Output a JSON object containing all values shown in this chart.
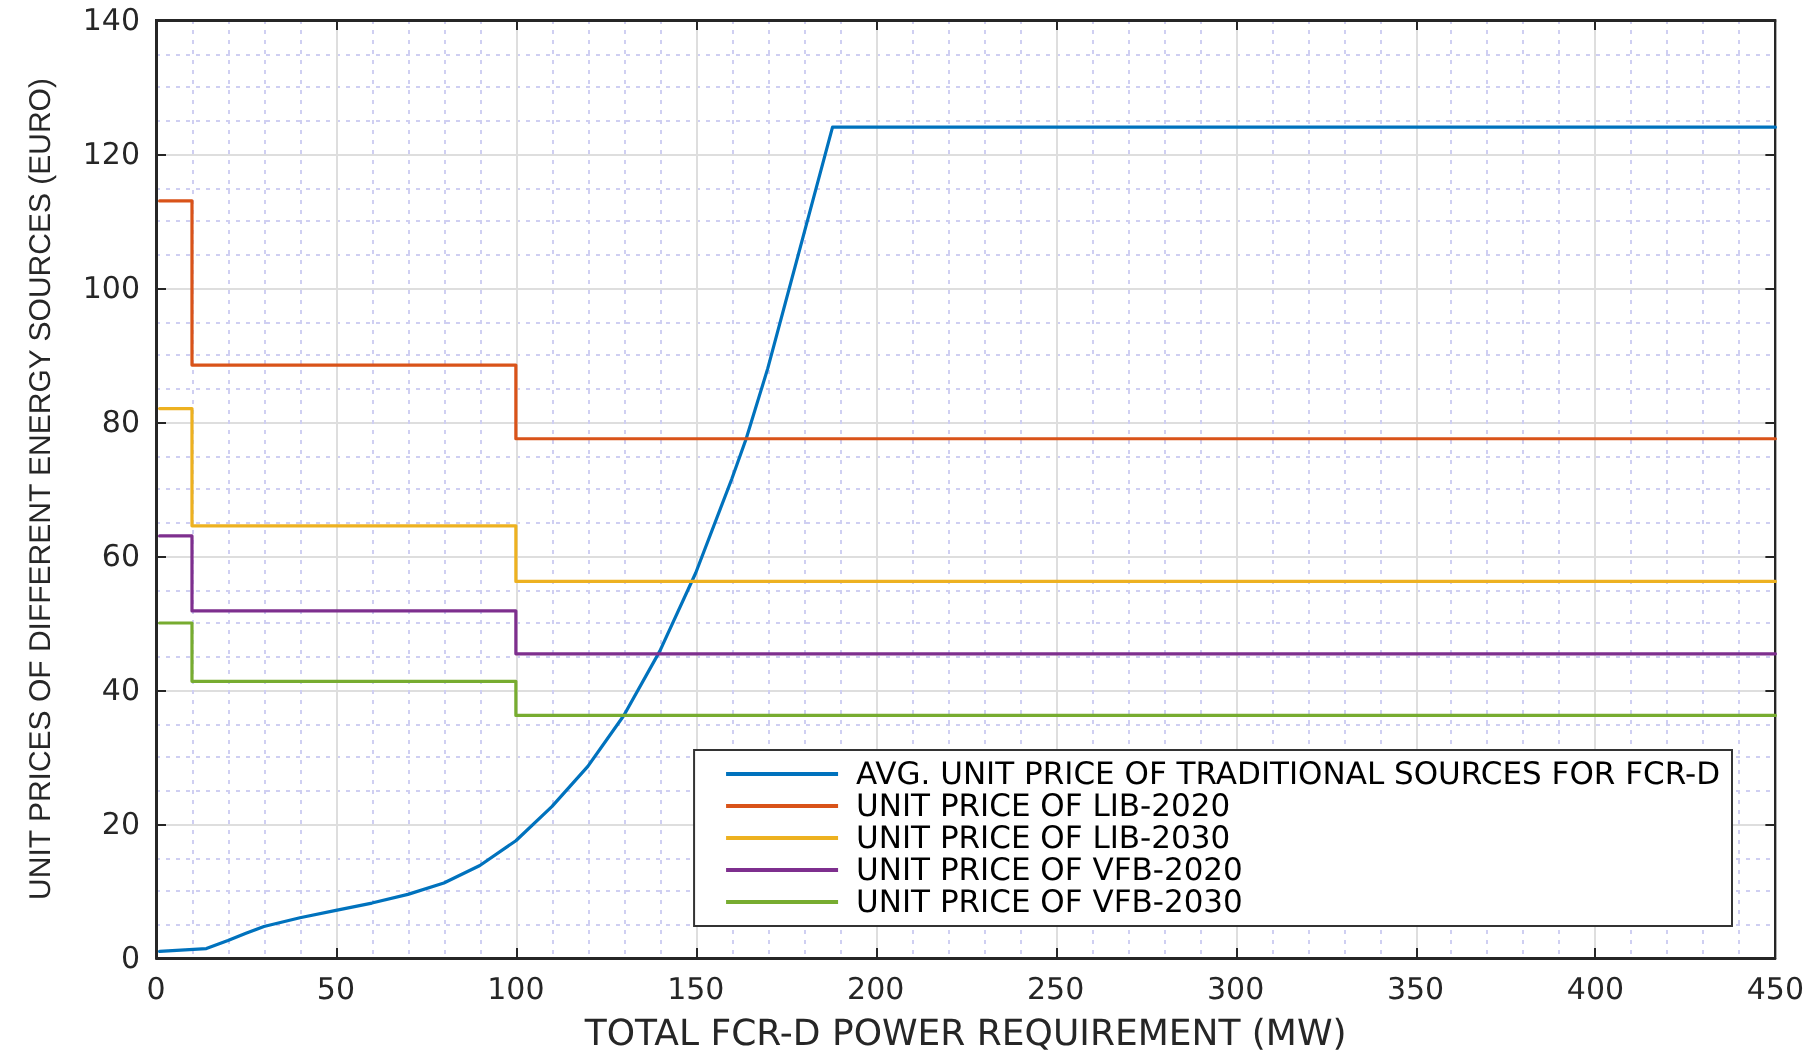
{
  "chart_data": {
    "type": "step",
    "xlabel": "TOTAL FCR-D POWER REQUIREMENT (MW)",
    "ylabel": "UNIT PRICES OF DIFFERENT ENERGY SOURCES (EURO)",
    "xlim": [
      0,
      450
    ],
    "xticks": [
      0,
      {
        "value": 10,
        "label": null
      },
      {
        "value": 20,
        "label": null
      },
      {
        "value": 30,
        "label": null
      },
      {
        "value": 40,
        "label": null
      },
      50,
      {
        "value": 60,
        "label": null
      },
      {
        "value": 70,
        "label": null
      },
      {
        "value": 80,
        "label": null
      },
      {
        "value": 90,
        "label": null
      },
      100,
      {
        "value": 110,
        "label": null
      },
      {
        "value": 120,
        "label": null
      },
      {
        "value": 130,
        "label": null
      },
      {
        "value": 140,
        "label": null
      },
      150,
      {
        "value": 160,
        "label": null
      },
      {
        "value": 170,
        "label": null
      },
      {
        "value": 180,
        "label": null
      },
      {
        "value": 190,
        "label": null
      },
      200,
      {
        "value": 210,
        "label": null
      },
      {
        "value": 220,
        "label": null
      },
      {
        "value": 230,
        "label": null
      },
      {
        "value": 240,
        "label": null
      },
      250,
      {
        "value": 260,
        "label": null
      },
      {
        "value": 270,
        "label": null
      },
      {
        "value": 280,
        "label": null
      },
      {
        "value": 290,
        "label": null
      },
      300,
      {
        "value": 310,
        "label": null
      },
      {
        "value": 320,
        "label": null
      },
      {
        "value": 330,
        "label": null
      },
      {
        "value": 340,
        "label": null
      },
      350,
      {
        "value": 360,
        "label": null
      },
      {
        "value": 370,
        "label": null
      },
      {
        "value": 380,
        "label": null
      },
      {
        "value": 390,
        "label": null
      },
      400,
      {
        "value": 410,
        "label": null
      },
      {
        "value": 420,
        "label": null
      },
      {
        "value": 430,
        "label": null
      },
      {
        "value": 440,
        "label": null
      },
      450
    ],
    "ylim": [
      0,
      140
    ],
    "yticks": [
      0,
      {
        "value": 5,
        "label": null
      },
      {
        "value": 10,
        "label": null
      },
      {
        "value": 15,
        "label": null
      },
      20,
      {
        "value": 25,
        "label": null
      },
      {
        "value": 30,
        "label": null
      },
      {
        "value": 35,
        "label": null
      },
      40,
      {
        "value": 45,
        "label": null
      },
      {
        "value": 50,
        "label": null
      },
      {
        "value": 55,
        "label": null
      },
      60,
      {
        "value": 65,
        "label": null
      },
      {
        "value": 70,
        "label": null
      },
      {
        "value": 75,
        "label": null
      },
      80,
      {
        "value": 85,
        "label": null
      },
      {
        "value": 90,
        "label": null
      },
      {
        "value": 95,
        "label": null
      },
      100,
      {
        "value": 105,
        "label": null
      },
      {
        "value": 110,
        "label": null
      },
      {
        "value": 115,
        "label": null
      },
      120,
      {
        "value": 125,
        "label": null
      },
      {
        "value": 130,
        "label": null
      },
      {
        "value": 135,
        "label": null
      },
      140
    ],
    "grid": true,
    "legend": "bottom right",
    "series": [
      {
        "name": "AVG. UNIT PRICE OF TRADITIONAL SOURCES FOR FCR-D",
        "type": "line",
        "color": "#0072bd",
        "x": [
          1,
          14,
          20,
          25,
          30,
          40,
          50,
          60,
          70,
          80,
          90,
          100,
          110,
          120,
          130,
          140,
          150,
          160,
          164,
          170,
          180,
          188,
          450
        ],
        "values": [
          1.0,
          1.4,
          2.6,
          3.7,
          4.7,
          6.0,
          7.1,
          8.2,
          9.5,
          11.2,
          13.8,
          17.5,
          22.6,
          28.6,
          36.2,
          45.8,
          57.5,
          71.5,
          77.5,
          88,
          108,
          124,
          124
        ]
      },
      {
        "name": "UNIT PRICE OF LIB-2020",
        "color": "#d95319",
        "x": [
          1,
          10,
          100,
          450
        ],
        "values": [
          113,
          88.5,
          77.5,
          77.5
        ]
      },
      {
        "name": "UNIT PRICE OF LIB-2030",
        "color": "#edb120",
        "x": [
          1,
          10,
          100,
          450
        ],
        "values": [
          82,
          64.5,
          56.2,
          56.2
        ]
      },
      {
        "name": "UNIT PRICE OF VFB-2020",
        "color": "#7e2f8e",
        "x": [
          1,
          10,
          100,
          450
        ],
        "values": [
          63,
          51.8,
          45.4,
          45.4
        ]
      },
      {
        "name": "UNIT PRICE OF VFB-2030",
        "color": "#77ac30",
        "x": [
          1,
          10,
          100,
          450
        ],
        "values": [
          50,
          41.3,
          36.2,
          36.2
        ]
      }
    ]
  }
}
